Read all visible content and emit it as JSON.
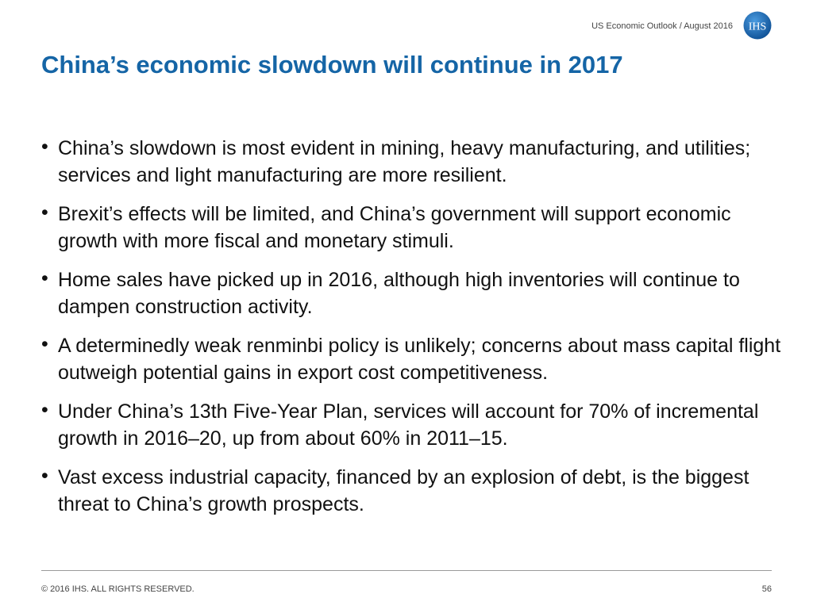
{
  "header": {
    "subtitle": "US Economic Outlook / August 2016",
    "logo_text": "IHS",
    "logo_color": "#1565a6"
  },
  "title": "China’s economic slowdown will continue in 2017",
  "bullets": [
    {
      "text": "China’s slowdown is most evident in mining, heavy manufacturing, and utilities; services and light manufacturing are more resilient."
    },
    {
      "text": "Brexit’s effects will be limited, and China’s government will support economic growth with more fiscal and monetary stimuli."
    },
    {
      "text": "Home sales have picked up in 2016, although high inventories will continue to dampen construction activity."
    },
    {
      "text": "A determinedly weak renminbi policy is unlikely; concerns about mass capital flight outweigh potential gains in export cost competitiveness."
    },
    {
      "text": "Under China’s 13th Five-Year Plan, services will account for 70% of incremental growth in 2016–20, up from about 60% in 2011–15."
    },
    {
      "text": "Vast excess industrial capacity, financed by an explosion of debt, is the biggest threat to China’s growth prospects."
    }
  ],
  "bullet_symbol": "•",
  "footer": {
    "copyright": "© 2016 IHS. ALL RIGHTS RESERVED.",
    "page_number": "56"
  }
}
